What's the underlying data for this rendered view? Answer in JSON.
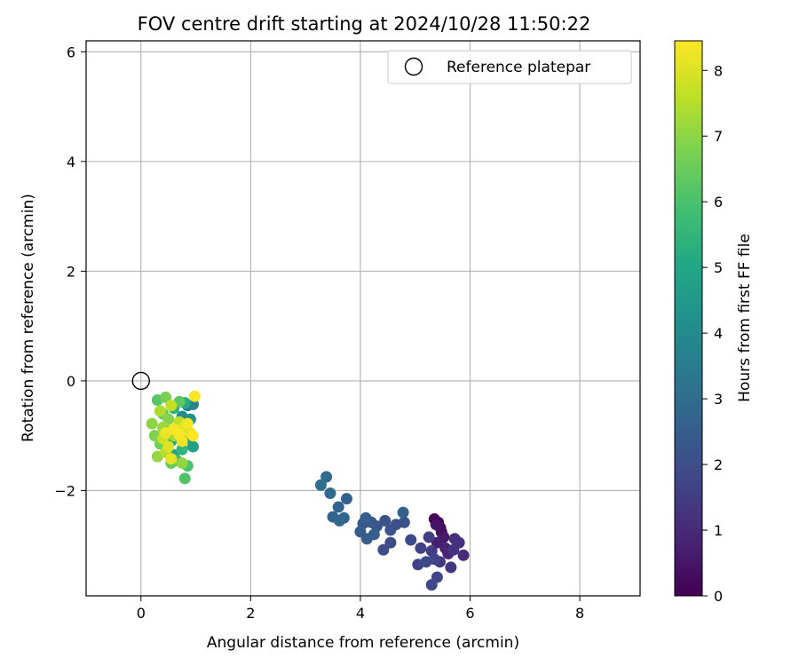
{
  "chart_data": {
    "type": "scatter",
    "title": "FOV centre drift starting at 2024/10/28 11:50:22",
    "xlabel": "Angular distance from reference (arcmin)",
    "ylabel": "Rotation from reference (arcmin)",
    "xlim": [
      -1.0,
      9.1
    ],
    "ylim": [
      -3.92,
      6.2
    ],
    "xticks": [
      0,
      2,
      4,
      6,
      8
    ],
    "xtick_labels": [
      "0",
      "2",
      "4",
      "6",
      "8"
    ],
    "yticks": [
      -2,
      0,
      2,
      4,
      6
    ],
    "ytick_labels": [
      "−2",
      "0",
      "2",
      "4",
      "6"
    ],
    "grid": true,
    "legend": {
      "position": "top-right",
      "label": "Reference platepar",
      "marker": "open-circle"
    },
    "reference_point": {
      "x": 0,
      "y": 0
    },
    "colorbar": {
      "label": "Hours from first FF file",
      "colormap": "viridis",
      "range": [
        0,
        8.45
      ],
      "ticks": [
        0,
        1,
        2,
        3,
        4,
        5,
        6,
        7,
        8
      ],
      "tick_labels": [
        "0",
        "1",
        "2",
        "3",
        "4",
        "5",
        "6",
        "7",
        "8"
      ]
    },
    "points": [
      {
        "x": 5.35,
        "y": -2.52,
        "t": 0.05
      },
      {
        "x": 5.42,
        "y": -2.58,
        "t": 0.15
      },
      {
        "x": 5.46,
        "y": -2.68,
        "t": 0.25
      },
      {
        "x": 5.48,
        "y": -2.76,
        "t": 0.35
      },
      {
        "x": 5.38,
        "y": -2.62,
        "t": 0.45
      },
      {
        "x": 5.52,
        "y": -2.85,
        "t": 0.55
      },
      {
        "x": 5.4,
        "y": -2.95,
        "t": 0.7
      },
      {
        "x": 5.55,
        "y": -3.05,
        "t": 0.8
      },
      {
        "x": 5.6,
        "y": -3.15,
        "t": 0.9
      },
      {
        "x": 5.88,
        "y": -3.18,
        "t": 1.0
      },
      {
        "x": 5.72,
        "y": -2.88,
        "t": 1.1
      },
      {
        "x": 5.8,
        "y": -2.95,
        "t": 1.2
      },
      {
        "x": 5.7,
        "y": -3.08,
        "t": 1.25
      },
      {
        "x": 5.65,
        "y": -3.4,
        "t": 1.35
      },
      {
        "x": 5.45,
        "y": -3.3,
        "t": 1.4
      },
      {
        "x": 5.3,
        "y": -3.1,
        "t": 1.5
      },
      {
        "x": 5.25,
        "y": -2.85,
        "t": 1.55
      },
      {
        "x": 5.1,
        "y": -3.05,
        "t": 1.6
      },
      {
        "x": 5.05,
        "y": -3.35,
        "t": 1.65
      },
      {
        "x": 5.35,
        "y": -3.25,
        "t": 1.7
      },
      {
        "x": 5.4,
        "y": -3.58,
        "t": 1.75
      },
      {
        "x": 5.3,
        "y": -3.72,
        "t": 1.8
      },
      {
        "x": 5.2,
        "y": -3.3,
        "t": 1.85
      },
      {
        "x": 4.92,
        "y": -2.9,
        "t": 1.9
      },
      {
        "x": 4.55,
        "y": -2.95,
        "t": 1.95
      },
      {
        "x": 4.42,
        "y": -3.08,
        "t": 2.0
      },
      {
        "x": 4.8,
        "y": -2.58,
        "t": 2.05
      },
      {
        "x": 4.65,
        "y": -2.62,
        "t": 2.1
      },
      {
        "x": 4.55,
        "y": -2.72,
        "t": 2.15
      },
      {
        "x": 4.45,
        "y": -2.55,
        "t": 2.2
      },
      {
        "x": 4.3,
        "y": -2.65,
        "t": 2.25
      },
      {
        "x": 4.2,
        "y": -2.58,
        "t": 2.3
      },
      {
        "x": 4.05,
        "y": -2.6,
        "t": 2.35
      },
      {
        "x": 4.12,
        "y": -2.88,
        "t": 2.4
      },
      {
        "x": 4.0,
        "y": -2.75,
        "t": 2.45
      },
      {
        "x": 4.25,
        "y": -2.8,
        "t": 2.5
      },
      {
        "x": 4.1,
        "y": -2.5,
        "t": 2.55
      },
      {
        "x": 4.78,
        "y": -2.4,
        "t": 2.6
      },
      {
        "x": 3.75,
        "y": -2.15,
        "t": 2.65
      },
      {
        "x": 3.6,
        "y": -2.3,
        "t": 2.7
      },
      {
        "x": 3.5,
        "y": -2.48,
        "t": 2.75
      },
      {
        "x": 3.7,
        "y": -2.5,
        "t": 2.8
      },
      {
        "x": 3.62,
        "y": -2.55,
        "t": 2.85
      },
      {
        "x": 3.45,
        "y": -2.05,
        "t": 2.9
      },
      {
        "x": 3.38,
        "y": -1.75,
        "t": 2.95
      },
      {
        "x": 3.28,
        "y": -1.9,
        "t": 3.0
      },
      {
        "x": 0.85,
        "y": -0.45,
        "t": 3.6
      },
      {
        "x": 0.95,
        "y": -0.43,
        "t": 3.8
      },
      {
        "x": 0.75,
        "y": -0.65,
        "t": 4.0
      },
      {
        "x": 0.9,
        "y": -0.7,
        "t": 4.2
      },
      {
        "x": 0.7,
        "y": -0.95,
        "t": 4.4
      },
      {
        "x": 0.85,
        "y": -1.05,
        "t": 4.6
      },
      {
        "x": 0.95,
        "y": -1.2,
        "t": 4.8
      },
      {
        "x": 0.6,
        "y": -1.35,
        "t": 4.9
      },
      {
        "x": 0.55,
        "y": -1.1,
        "t": 5.0
      },
      {
        "x": 0.8,
        "y": -0.4,
        "t": 5.2
      },
      {
        "x": 0.6,
        "y": -0.5,
        "t": 5.4
      },
      {
        "x": 0.75,
        "y": -1.25,
        "t": 5.5
      },
      {
        "x": 0.45,
        "y": -0.9,
        "t": 5.6
      },
      {
        "x": 0.65,
        "y": -1.45,
        "t": 5.8
      },
      {
        "x": 0.85,
        "y": -1.55,
        "t": 6.0
      },
      {
        "x": 0.8,
        "y": -1.78,
        "t": 6.1
      },
      {
        "x": 0.3,
        "y": -0.35,
        "t": 6.2
      },
      {
        "x": 0.7,
        "y": -0.38,
        "t": 6.3
      },
      {
        "x": 0.4,
        "y": -0.6,
        "t": 6.4
      },
      {
        "x": 0.55,
        "y": -1.5,
        "t": 6.5
      },
      {
        "x": 0.35,
        "y": -1.15,
        "t": 6.6
      },
      {
        "x": 0.45,
        "y": -0.3,
        "t": 6.7
      },
      {
        "x": 0.25,
        "y": -1.0,
        "t": 6.8
      },
      {
        "x": 0.5,
        "y": -0.7,
        "t": 6.9
      },
      {
        "x": 0.2,
        "y": -0.78,
        "t": 7.0
      },
      {
        "x": 0.75,
        "y": -1.5,
        "t": 7.05
      },
      {
        "x": 0.3,
        "y": -1.38,
        "t": 7.1
      },
      {
        "x": 0.4,
        "y": -0.85,
        "t": 7.2
      },
      {
        "x": 0.6,
        "y": -1.0,
        "t": 7.3
      },
      {
        "x": 0.35,
        "y": -0.55,
        "t": 7.4
      },
      {
        "x": 0.45,
        "y": -1.3,
        "t": 7.5
      },
      {
        "x": 0.7,
        "y": -0.75,
        "t": 7.6
      },
      {
        "x": 0.55,
        "y": -0.45,
        "t": 7.7
      },
      {
        "x": 0.4,
        "y": -1.05,
        "t": 7.8
      },
      {
        "x": 0.65,
        "y": -0.9,
        "t": 7.9
      },
      {
        "x": 0.5,
        "y": -1.2,
        "t": 8.0
      },
      {
        "x": 0.8,
        "y": -0.82,
        "t": 8.05
      },
      {
        "x": 0.55,
        "y": -1.42,
        "t": 8.1
      },
      {
        "x": 0.9,
        "y": -0.95,
        "t": 8.15
      },
      {
        "x": 0.45,
        "y": -0.95,
        "t": 8.2
      },
      {
        "x": 0.75,
        "y": -1.1,
        "t": 8.25
      },
      {
        "x": 0.85,
        "y": -0.78,
        "t": 8.3
      },
      {
        "x": 0.6,
        "y": -0.88,
        "t": 8.35
      },
      {
        "x": 0.98,
        "y": -0.28,
        "t": 8.4
      },
      {
        "x": 0.7,
        "y": -0.98,
        "t": 8.42
      },
      {
        "x": 0.95,
        "y": -1.0,
        "t": 8.45
      }
    ]
  }
}
